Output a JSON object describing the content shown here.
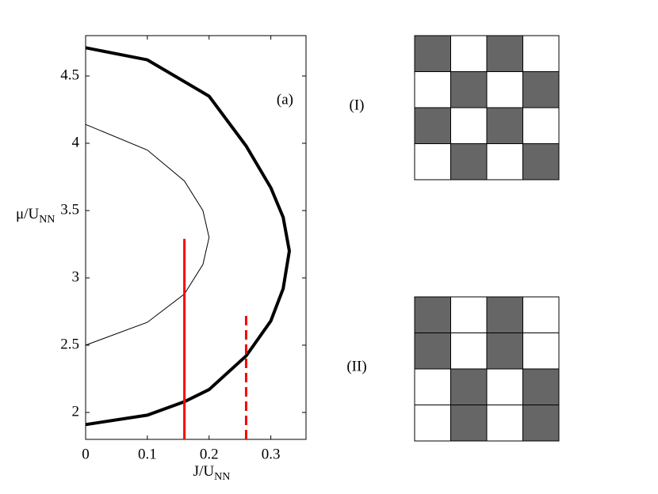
{
  "chart_data": {
    "type": "line",
    "annotation": "(a)",
    "xlabel": {
      "text": "J/U",
      "sub": "NN"
    },
    "ylabel": {
      "text": "μ/U",
      "sub": "NN"
    },
    "xlim": [
      0,
      0.357
    ],
    "ylim": [
      1.8,
      4.8
    ],
    "xticks": [
      0,
      0.1,
      0.2,
      0.3
    ],
    "yticks": [
      2,
      2.5,
      3,
      3.5,
      4,
      4.5
    ],
    "series": [
      {
        "color": "#000000",
        "linewidth": 4,
        "linestyle": "solid",
        "x": [
          0,
          0.1,
          0.16,
          0.2,
          0.26,
          0.3,
          0.32,
          0.33,
          0.32,
          0.3,
          0.26,
          0.2,
          0.1,
          0
        ],
        "values": [
          1.91,
          1.98,
          2.08,
          2.17,
          2.42,
          2.68,
          2.92,
          3.2,
          3.45,
          3.67,
          3.98,
          4.35,
          4.62,
          4.71
        ]
      },
      {
        "color": "#000000",
        "linewidth": 1,
        "linestyle": "solid",
        "x": [
          0,
          0.1,
          0.16,
          0.19,
          0.2,
          0.19,
          0.16,
          0.1,
          0
        ],
        "values": [
          2.5,
          2.67,
          2.88,
          3.1,
          3.3,
          3.5,
          3.72,
          3.95,
          4.14
        ]
      },
      {
        "color": "#ff0000",
        "linewidth": 3,
        "linestyle": "solid",
        "x": [
          0.16,
          0.16
        ],
        "values": [
          1.8,
          3.29
        ]
      },
      {
        "color": "#ff0000",
        "linewidth": 3,
        "linestyle": "dashed",
        "x": [
          0.26,
          0.26
        ],
        "values": [
          1.8,
          2.73
        ]
      }
    ]
  },
  "panels": [
    {
      "label": "(I)",
      "cells": [
        [
          1,
          0,
          1,
          0
        ],
        [
          0,
          1,
          0,
          1
        ],
        [
          1,
          0,
          1,
          0
        ],
        [
          0,
          1,
          0,
          1
        ]
      ]
    },
    {
      "label": "(II)",
      "cells": [
        [
          1,
          0,
          1,
          0
        ],
        [
          1,
          0,
          1,
          0
        ],
        [
          0,
          1,
          0,
          1
        ],
        [
          0,
          1,
          0,
          1
        ]
      ]
    }
  ]
}
